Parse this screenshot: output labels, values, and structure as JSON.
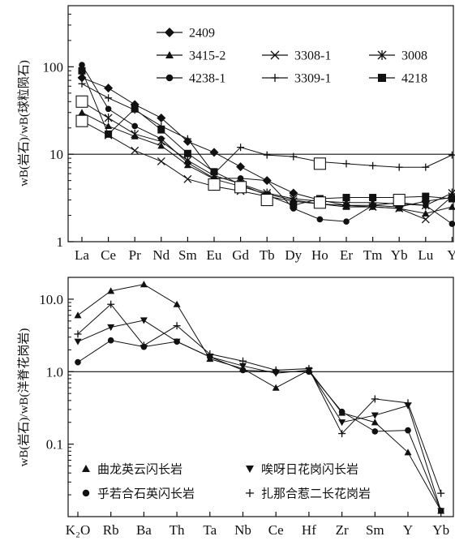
{
  "chart_data": [
    {
      "type": "line",
      "yscale": "log",
      "ylim": [
        1,
        500
      ],
      "yticks": [
        "1",
        "10",
        "100"
      ],
      "ylabel": "wB(岩石)/wB(球粒陨石)",
      "categories": [
        "La",
        "Ce",
        "Pr",
        "Nd",
        "Sm",
        "Eu",
        "Gd",
        "Tb",
        "Dy",
        "Ho",
        "Er",
        "Tm",
        "Yb",
        "Lu",
        "Y"
      ],
      "legend_position": "top",
      "series": [
        {
          "name": "2409",
          "marker": "diamond",
          "values": [
            75,
            57,
            37,
            26,
            14,
            10.5,
            7.2,
            5.0,
            3.6,
            3.0,
            2.6,
            2.6,
            2.5,
            2.9,
            3.2
          ]
        },
        {
          "name": "3415-2",
          "marker": "triangle",
          "values": [
            30,
            21,
            16,
            12.5,
            7.5,
            5.2,
            4.3,
            3.5,
            3.0,
            2.7,
            2.5,
            2.5,
            2.4,
            2.1,
            2.5
          ]
        },
        {
          "name": "3308-1",
          "marker": "x",
          "values": [
            24,
            16.5,
            11,
            8.3,
            5.2,
            4.3,
            3.8,
            3.3,
            2.9,
            2.7,
            2.6,
            2.5,
            2.4,
            1.8,
            3.3
          ]
        },
        {
          "name": "3008",
          "marker": "asterisk",
          "values": [
            40,
            26,
            17,
            14,
            8.5,
            5.7,
            4.6,
            3.6,
            3.1,
            2.9,
            2.8,
            2.8,
            2.7,
            2.6,
            3.6
          ]
        },
        {
          "name": "4238-1",
          "marker": "circle",
          "values": [
            105,
            33,
            21,
            15,
            8.0,
            5.3,
            5.3,
            5.0,
            2.4,
            1.8,
            1.7,
            2.6,
            2.8,
            2.6,
            1.6
          ]
        },
        {
          "name": "3309-1",
          "marker": "plus",
          "values": [
            64,
            44,
            32,
            21,
            15,
            6.0,
            12,
            9.8,
            9.4,
            8.2,
            7.8,
            7.4,
            7.1,
            7.1,
            9.8
          ]
        },
        {
          "name": "4218",
          "marker": "square",
          "values": [
            90,
            17,
            33,
            19,
            10.2,
            6.3,
            4.5,
            3.4,
            2.6,
            3.1,
            3.2,
            3.2,
            3.2,
            3.3,
            3.1
          ]
        }
      ],
      "boxed_points": [
        {
          "category": "La",
          "value": 40
        },
        {
          "category": "La",
          "value": 24
        },
        {
          "category": "Eu",
          "value": 4.5
        },
        {
          "category": "Gd",
          "value": 4.2
        },
        {
          "category": "Tb",
          "value": 3.0
        },
        {
          "category": "Ho",
          "value": 2.8
        },
        {
          "category": "Ho",
          "value": 7.8
        },
        {
          "category": "Yb",
          "value": 3.0
        }
      ]
    },
    {
      "type": "line",
      "yscale": "log",
      "ylim": [
        0.01,
        20
      ],
      "yticks": [
        "0.1",
        "1.0",
        "10.0"
      ],
      "ylabel": "wB(岩石)/wB(洋脊花岗岩)",
      "categories": [
        "K₂O",
        "Rb",
        "Ba",
        "Th",
        "Ta",
        "Nb",
        "Ce",
        "Hf",
        "Zr",
        "Sm",
        "Y",
        "Yb"
      ],
      "legend_position": "bottom",
      "series": [
        {
          "name": "曲龙英云闪长岩",
          "marker": "triangle-up",
          "values": [
            6.0,
            13,
            16,
            8.5,
            1.5,
            1.1,
            0.6,
            1.05,
            0.27,
            0.2,
            0.077,
            0.012
          ]
        },
        {
          "name": "唉呀日花岗闪长岩",
          "marker": "triangle-down",
          "values": [
            2.6,
            4.1,
            5.1,
            2.6,
            1.6,
            1.2,
            0.95,
            1.05,
            0.2,
            0.25,
            0.34,
            0.012
          ]
        },
        {
          "name": "乎若合石英闪长岩",
          "marker": "circle",
          "values": [
            1.35,
            2.7,
            2.2,
            2.6,
            1.6,
            1.05,
            1.0,
            1.0,
            0.28,
            0.15,
            0.155,
            0.012
          ]
        },
        {
          "name": "扎那合惹二长花岗岩",
          "marker": "plus",
          "values": [
            3.3,
            8.5,
            2.3,
            4.3,
            1.75,
            1.4,
            1.05,
            1.1,
            0.14,
            0.42,
            0.37,
            0.021
          ]
        }
      ]
    }
  ]
}
